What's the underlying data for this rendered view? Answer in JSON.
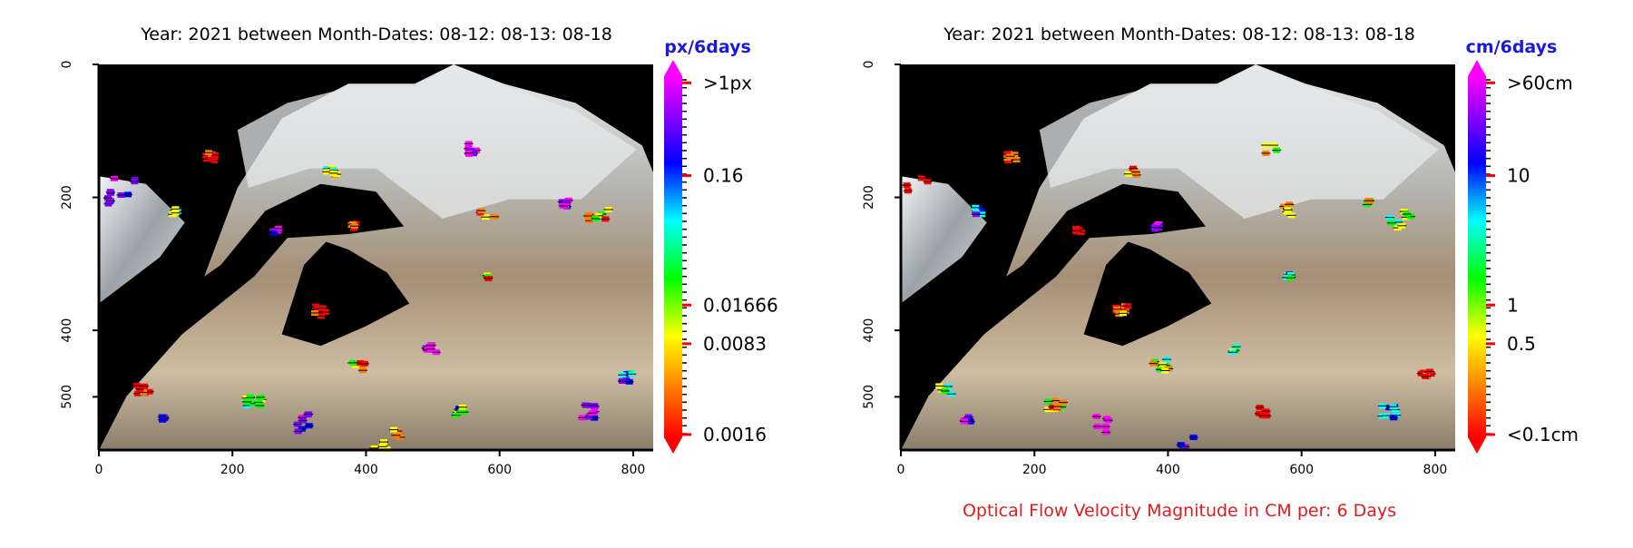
{
  "chart_data": [
    {
      "type": "heatmap",
      "title": "Year: 2021 between Month-Dates: 08-12: 08-13: 08-18",
      "colorbar_unit": "px/6days",
      "colorbar_labels": [
        ">1px",
        "0.16",
        "0.01666",
        "0.0083",
        "0.0016"
      ],
      "colorbar_values": [
        1,
        0.16,
        0.01666,
        0.0083,
        0.0016
      ],
      "colorbar_scale": "log",
      "xlim": [
        0,
        830
      ],
      "ylim": [
        580,
        0
      ],
      "xticks": [
        "0",
        "200",
        "400",
        "600",
        "800"
      ],
      "yticks": [
        "0",
        "200",
        "400",
        "500"
      ],
      "ytick_values": [
        0,
        200,
        400,
        500
      ],
      "caption": ""
    },
    {
      "type": "heatmap",
      "title": "Year: 2021 between Month-Dates: 08-12: 08-13: 08-18",
      "colorbar_unit": "cm/6days",
      "colorbar_labels": [
        ">60cm",
        "10",
        "1",
        "0.5",
        "<0.1cm"
      ],
      "colorbar_values": [
        60,
        10,
        1,
        0.5,
        0.1
      ],
      "colorbar_scale": "log",
      "xlim": [
        0,
        830
      ],
      "ylim": [
        580,
        0
      ],
      "xticks": [
        "0",
        "200",
        "400",
        "600",
        "800"
      ],
      "yticks": [
        "0",
        "200",
        "400",
        "500"
      ],
      "ytick_values": [
        0,
        200,
        400,
        500
      ],
      "caption": "Optical Flow Velocity Magnitude in CM per: 6 Days"
    }
  ],
  "colors": {
    "colormap": [
      "#ff0000",
      "#ff8000",
      "#ffff00",
      "#00ff00",
      "#00ffff",
      "#0000ff",
      "#8000ff",
      "#ff00ff"
    ],
    "caption": "#e31a1c",
    "unit": "#1a1adb",
    "background": "#000000"
  }
}
